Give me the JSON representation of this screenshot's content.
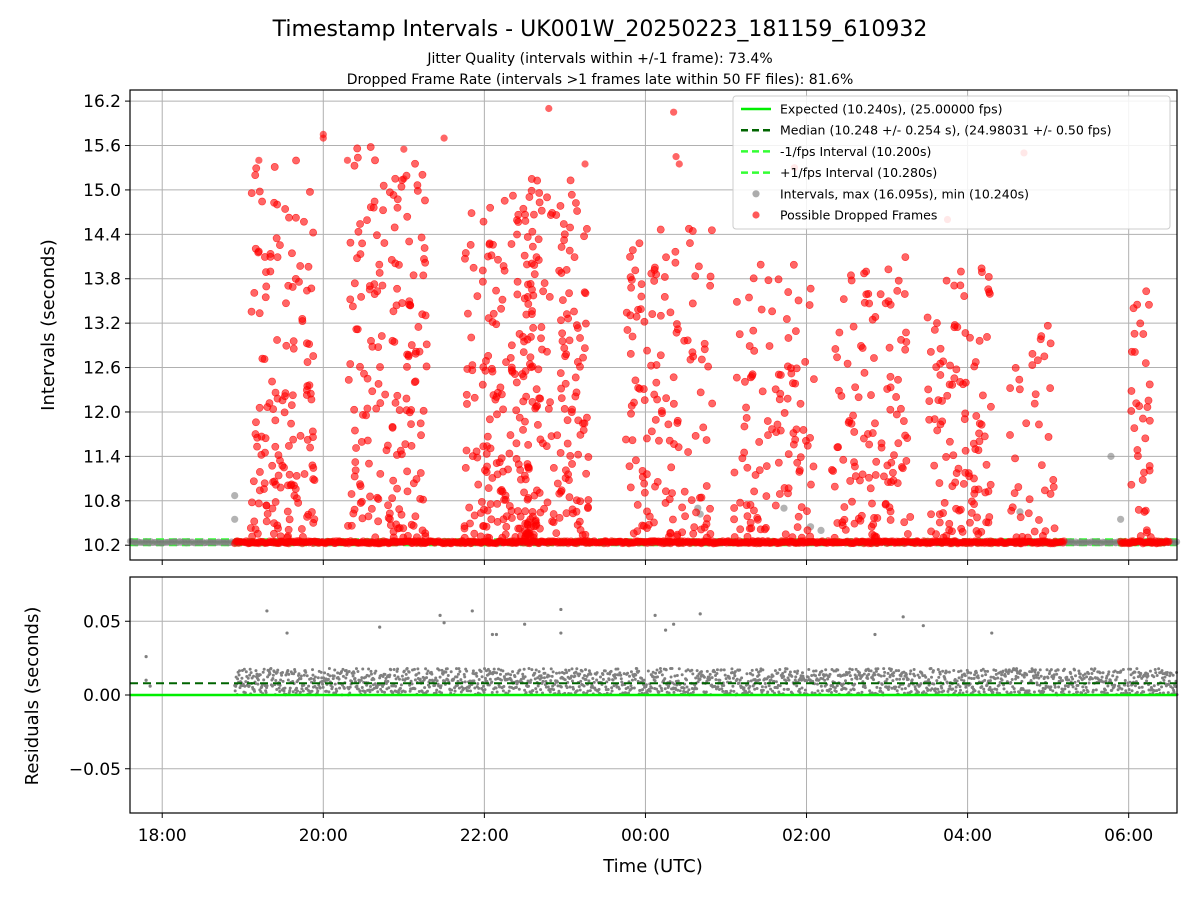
{
  "title": "Timestamp Intervals - UK001W_20250223_181159_610932",
  "subtitle_1": "Jitter Quality (intervals within +/-1 frame): 73.4%",
  "subtitle_2": "Dropped Frame Rate (intervals >1 frames late within 50 FF files): 81.6%",
  "colors": {
    "expected": "#00ee00",
    "median": "#006400",
    "fps_interval": "#33ff33",
    "normal_points": "#808080",
    "dropped_points": "#ff0000",
    "residual_points": "#808080",
    "grid": "#b0b0b0"
  },
  "chart_data": [
    {
      "type": "scatter",
      "panel": "top",
      "xlabel": "",
      "ylabel": "Intervals (seconds)",
      "x_unit": "hours since 00:00 UTC (negative = previous day)",
      "xlim": [
        -6.4,
        6.6
      ],
      "ylim": [
        10.0,
        16.35
      ],
      "yticks": [
        10.2,
        10.8,
        11.4,
        12.0,
        12.6,
        13.2,
        13.8,
        14.4,
        15.0,
        15.6,
        16.2
      ],
      "ytick_labels": [
        "10.2",
        "10.8",
        "11.4",
        "12.0",
        "12.6",
        "13.2",
        "13.8",
        "14.4",
        "15.0",
        "15.6",
        "16.2"
      ],
      "grid": true,
      "legend_position": "upper right",
      "lines": [
        {
          "name": "Expected (10.240s), (25.00000 fps)",
          "y": 10.24,
          "style": "solid"
        },
        {
          "name": "Median (10.248 +/- 0.254 s), (24.98031 +/- 0.50 fps)",
          "y": 10.248,
          "style": "dashed"
        },
        {
          "name": "-1/fps Interval (10.200s)",
          "y": 10.2,
          "style": "dashed"
        },
        {
          "name": "+1/fps Interval (10.280s)",
          "y": 10.28,
          "style": "dashed"
        }
      ],
      "scatter_series": [
        {
          "name": "Intervals, max (16.095s), min (10.240s)",
          "marker_color": "normal_points"
        },
        {
          "name": "Possible Dropped Frames",
          "marker_color": "dropped_points"
        }
      ],
      "baseline_band": {
        "x_start": -6.4,
        "x_end": 6.6,
        "y": 10.24
      },
      "active_range": [
        -5.1,
        5.2
      ],
      "second_active_range": [
        5.9,
        6.5
      ],
      "gap_range": [
        5.2,
        5.9
      ],
      "gray_points": [
        {
          "x": -5.1,
          "y": 10.87
        },
        {
          "x": -5.1,
          "y": 10.55
        },
        {
          "x": 0.65,
          "y": 10.7
        },
        {
          "x": 0.68,
          "y": 10.62
        },
        {
          "x": 1.72,
          "y": 10.7
        },
        {
          "x": 2.05,
          "y": 10.45
        },
        {
          "x": 2.18,
          "y": 10.4
        },
        {
          "x": 4.65,
          "y": 10.65
        },
        {
          "x": 5.78,
          "y": 11.4
        },
        {
          "x": 5.9,
          "y": 10.55
        }
      ],
      "notable_red_points": [
        {
          "x": -1.2,
          "y": 16.1
        },
        {
          "x": 0.35,
          "y": 16.05
        },
        {
          "x": -4.0,
          "y": 15.75
        },
        {
          "x": -4.0,
          "y": 15.7
        },
        {
          "x": -2.5,
          "y": 15.7
        },
        {
          "x": -3.0,
          "y": 15.55
        },
        {
          "x": 0.38,
          "y": 15.45
        },
        {
          "x": 4.7,
          "y": 15.5
        },
        {
          "x": -4.8,
          "y": 15.4
        },
        {
          "x": -3.7,
          "y": 15.4
        },
        {
          "x": 0.42,
          "y": 15.35
        },
        {
          "x": -0.75,
          "y": 15.35
        },
        {
          "x": -3.0,
          "y": 15.15
        },
        {
          "x": 1.85,
          "y": 15.3
        },
        {
          "x": 3.75,
          "y": 14.6
        }
      ],
      "dropped_density": {
        "clusters": [
          {
            "x_center": -4.5,
            "width": 0.8,
            "y_min": 10.3,
            "y_max": 15.4,
            "count": 150
          },
          {
            "x_center": -3.2,
            "width": 1.0,
            "y_min": 10.3,
            "y_max": 15.6,
            "count": 180
          },
          {
            "x_center": -1.8,
            "width": 0.9,
            "y_min": 10.3,
            "y_max": 15.0,
            "count": 180
          },
          {
            "x_center": -1.1,
            "width": 0.8,
            "y_min": 10.3,
            "y_max": 15.3,
            "count": 170
          },
          {
            "x_center": 0.3,
            "width": 1.1,
            "y_min": 10.3,
            "y_max": 14.5,
            "count": 140
          },
          {
            "x_center": 1.6,
            "width": 1.0,
            "y_min": 10.3,
            "y_max": 14.0,
            "count": 110
          },
          {
            "x_center": 2.8,
            "width": 1.0,
            "y_min": 10.3,
            "y_max": 14.1,
            "count": 120
          },
          {
            "x_center": 3.9,
            "width": 0.8,
            "y_min": 10.3,
            "y_max": 14.0,
            "count": 110
          },
          {
            "x_center": 4.8,
            "width": 0.6,
            "y_min": 10.3,
            "y_max": 13.2,
            "count": 40
          },
          {
            "x_center": 6.15,
            "width": 0.25,
            "y_min": 10.3,
            "y_max": 13.8,
            "count": 35
          }
        ]
      }
    },
    {
      "type": "scatter",
      "panel": "bottom",
      "xlabel": "Time (UTC)",
      "ylabel": "Residuals (seconds)",
      "xlim": [
        -6.4,
        6.6
      ],
      "ylim": [
        -0.08,
        0.08
      ],
      "xticks": [
        -6,
        -4,
        -2,
        0,
        2,
        4,
        6
      ],
      "xtick_labels": [
        "18:00",
        "20:00",
        "22:00",
        "00:00",
        "02:00",
        "04:00",
        "06:00"
      ],
      "yticks": [
        -0.05,
        0.0,
        0.05
      ],
      "ytick_labels": [
        "−0.05",
        "0.00",
        "0.05"
      ],
      "grid": true,
      "zero_line": 0.0,
      "median_line": 0.008,
      "band": {
        "x_start": -5.1,
        "x_end": 6.6,
        "y_min": 0.0,
        "y_max": 0.018
      },
      "early_points": [
        {
          "x": -6.2,
          "y": 0.026
        },
        {
          "x": -6.2,
          "y": 0.01
        },
        {
          "x": -6.15,
          "y": 0.006
        }
      ],
      "outliers": [
        {
          "x": -4.7,
          "y": 0.057
        },
        {
          "x": -4.45,
          "y": 0.042
        },
        {
          "x": -3.3,
          "y": 0.046
        },
        {
          "x": -2.55,
          "y": 0.054
        },
        {
          "x": -2.5,
          "y": 0.049
        },
        {
          "x": -2.15,
          "y": 0.057
        },
        {
          "x": -1.9,
          "y": 0.041
        },
        {
          "x": -1.85,
          "y": 0.041
        },
        {
          "x": -1.5,
          "y": 0.048
        },
        {
          "x": -1.05,
          "y": 0.058
        },
        {
          "x": -1.05,
          "y": 0.042
        },
        {
          "x": 0.12,
          "y": 0.054
        },
        {
          "x": 0.25,
          "y": 0.044
        },
        {
          "x": 0.35,
          "y": 0.048
        },
        {
          "x": 0.68,
          "y": 0.055
        },
        {
          "x": 2.85,
          "y": 0.041
        },
        {
          "x": 3.2,
          "y": 0.053
        },
        {
          "x": 3.45,
          "y": 0.047
        },
        {
          "x": 4.3,
          "y": 0.042
        }
      ]
    }
  ],
  "legend": [
    {
      "label": "Expected (10.240s), (25.00000 fps)",
      "kind": "line",
      "color_key": "expected",
      "dash": false
    },
    {
      "label": "Median (10.248 +/- 0.254 s), (24.98031 +/- 0.50 fps)",
      "kind": "line",
      "color_key": "median",
      "dash": true
    },
    {
      "label": "-1/fps Interval (10.200s)",
      "kind": "line",
      "color_key": "fps_interval",
      "dash": true
    },
    {
      "label": "+1/fps Interval (10.280s)",
      "kind": "line",
      "color_key": "fps_interval",
      "dash": true
    },
    {
      "label": "Intervals, max (16.095s), min (10.240s)",
      "kind": "marker",
      "color_key": "normal_points"
    },
    {
      "label": "Possible Dropped Frames",
      "kind": "marker",
      "color_key": "dropped_points"
    }
  ]
}
